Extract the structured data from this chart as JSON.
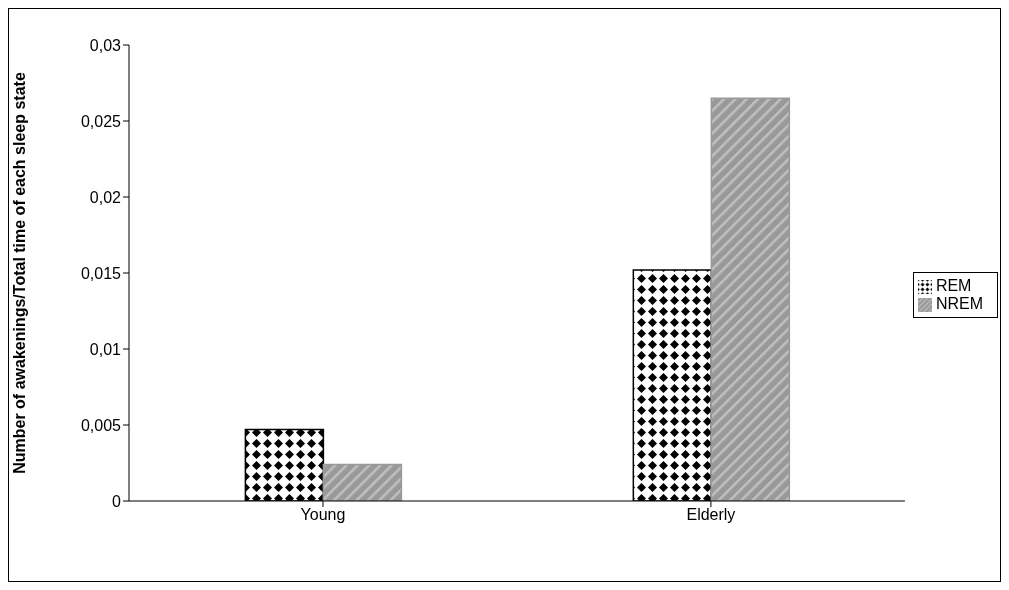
{
  "chart_data": {
    "type": "bar",
    "ylabel": "Number of awakenings/Total time of each sleep state",
    "categories": [
      "Young",
      "Elderly"
    ],
    "series": [
      {
        "name": "REM",
        "color": "#000000",
        "values": [
          0.0047,
          0.0152
        ]
      },
      {
        "name": "NREM",
        "color": "#999999",
        "values": [
          0.0024,
          0.0265
        ]
      }
    ],
    "ylim": [
      0,
      0.03
    ],
    "yticks": [
      {
        "value": 0,
        "label": "0"
      },
      {
        "value": 0.005,
        "label": "0,005"
      },
      {
        "value": 0.01,
        "label": "0,01"
      },
      {
        "value": 0.015,
        "label": "0,015"
      },
      {
        "value": 0.02,
        "label": "0,02"
      },
      {
        "value": 0.025,
        "label": "0,025"
      },
      {
        "value": 0.03,
        "label": "0,03"
      }
    ],
    "grid": false,
    "legend": "right"
  }
}
